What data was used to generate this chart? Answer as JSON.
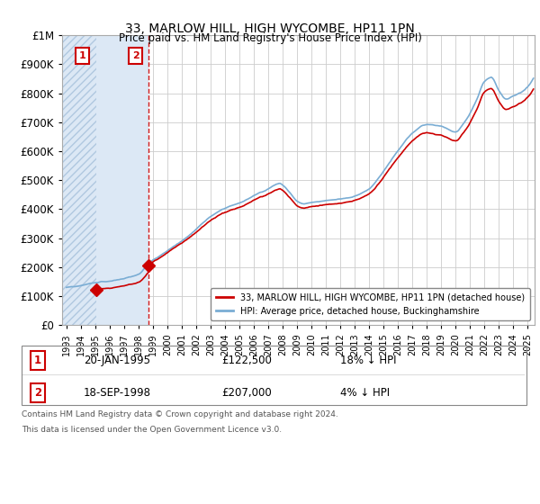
{
  "title": "33, MARLOW HILL, HIGH WYCOMBE, HP11 1PN",
  "subtitle": "Price paid vs. HM Land Registry's House Price Index (HPI)",
  "legend_line1": "33, MARLOW HILL, HIGH WYCOMBE, HP11 1PN (detached house)",
  "legend_line2": "HPI: Average price, detached house, Buckinghamshire",
  "footer1": "Contains HM Land Registry data © Crown copyright and database right 2024.",
  "footer2": "This data is licensed under the Open Government Licence v3.0.",
  "sale1_date": "20-JAN-1995",
  "sale1_price": 122500,
  "sale1_note": "18% ↓ HPI",
  "sale2_date": "18-SEP-1998",
  "sale2_price": 207000,
  "sale2_note": "4% ↓ HPI",
  "sale1_x": 1995.05,
  "sale2_x": 1998.72,
  "hpi_color": "#7aadd4",
  "price_color": "#cc0000",
  "annotation_box_color": "#cc0000",
  "ylim_max": 1000000,
  "xlim_min": 1992.7,
  "xlim_max": 2025.5
}
